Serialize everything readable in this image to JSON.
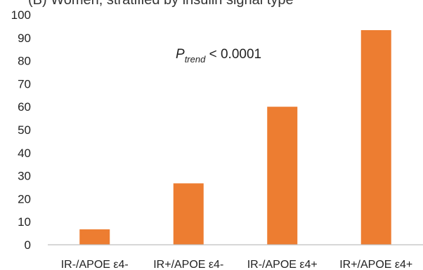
{
  "chart_data": {
    "type": "bar",
    "title_partial": "(B) Women, stratified by insulin signal type",
    "categories": [
      "IR-/APOE ε4-",
      "IR+/APOE ε4-",
      "IR-/APOE ε4+",
      "IR+/APOE ε4+"
    ],
    "values": [
      6.7,
      26.7,
      60.0,
      93.3
    ],
    "ylim": [
      0,
      100
    ],
    "yticks": [
      "0",
      "10",
      "20",
      "30",
      "40",
      "50",
      "60",
      "70",
      "80",
      "90",
      "100"
    ],
    "annotation": {
      "p_symbol": "P",
      "p_subscript": "trend",
      "p_text": " < 0.0001"
    },
    "bar_color": "#ED7D31",
    "grid": false,
    "legend": "none"
  }
}
